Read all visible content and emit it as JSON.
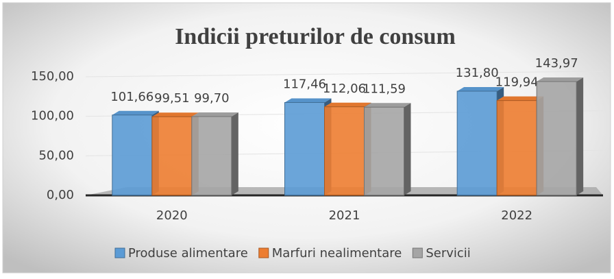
{
  "chart_data": {
    "type": "bar3d",
    "title": "Indicii preturilor de consum",
    "categories": [
      "2020",
      "2021",
      "2022"
    ],
    "series": [
      {
        "name": "Produse alimentare",
        "color": "#5b9bd5",
        "values": [
          101.66,
          117.46,
          131.8
        ],
        "value_labels": [
          "101,66",
          "117,46",
          "131,80"
        ]
      },
      {
        "name": "Marfuri nealimentare",
        "color": "#ed7d31",
        "values": [
          99.51,
          112.06,
          119.94
        ],
        "value_labels": [
          "99,51",
          "112,06",
          "119,94"
        ]
      },
      {
        "name": "Servicii",
        "color": "#a5a5a5",
        "values": [
          99.7,
          111.59,
          143.97
        ],
        "value_labels": [
          "99,70",
          "111,59",
          "143,97"
        ]
      }
    ],
    "ylim": [
      0,
      150
    ],
    "yticks": [
      {
        "value": 0,
        "label": "0,00"
      },
      {
        "value": 50,
        "label": "50,00"
      },
      {
        "value": 100,
        "label": "100,00"
      },
      {
        "value": 150,
        "label": "150,00"
      }
    ],
    "grid": true,
    "legend": "bottom"
  }
}
